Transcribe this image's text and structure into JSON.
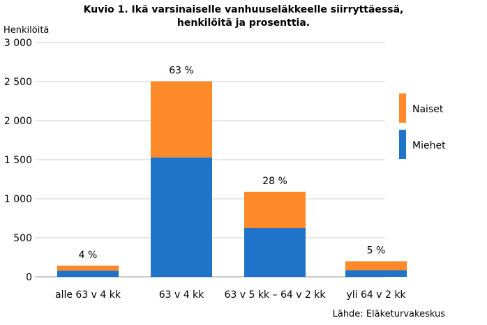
{
  "chart_data": {
    "type": "bar",
    "stacked": true,
    "title": [
      "Kuvio 1. Ikä varsinaiselle vanhuuseläkkeelle siirryttäessä,",
      "henkilöitä ja prosenttia."
    ],
    "ylabel": "Henkilöitä",
    "xlabel": "",
    "ylim": [
      0,
      3000
    ],
    "yticks": [
      0,
      500,
      1000,
      1500,
      2000,
      2500,
      3000
    ],
    "ytick_labels": [
      "0",
      "500",
      "1 000",
      "1 500",
      "2 000",
      "2 500",
      "3 000"
    ],
    "grid": true,
    "legend_position": "right",
    "categories": [
      "alle 63 v 4 kk",
      "63 v 4 kk",
      "63 v 5 kk – 64 v 2 kk",
      "yli 64 v 2 kk"
    ],
    "series": [
      {
        "name": "Miehet",
        "color": "#1f74c9",
        "values": [
          80,
          1530,
          625,
          85
        ]
      },
      {
        "name": "Naiset",
        "color": "#ff8a2a",
        "values": [
          65,
          975,
          465,
          115
        ]
      }
    ],
    "data_labels": [
      "4 %",
      "63 %",
      "28 %",
      "5 %"
    ],
    "source": "Lähde: Eläketurvakeskus"
  }
}
